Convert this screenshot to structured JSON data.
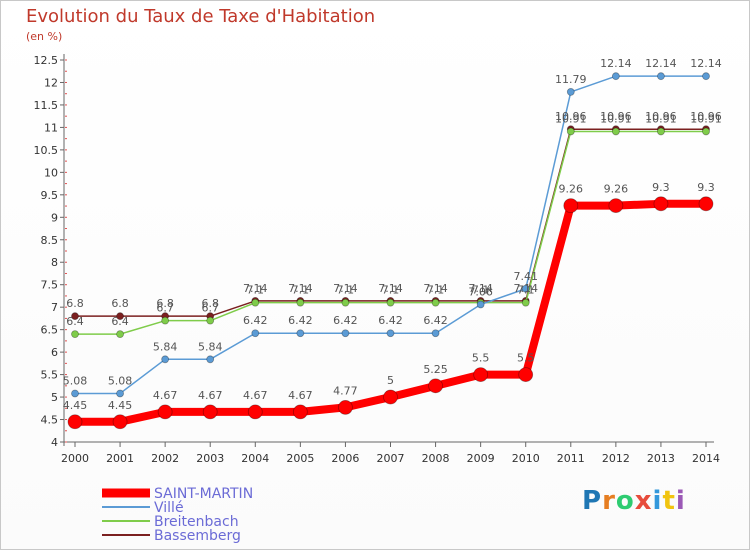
{
  "header": {
    "title": "Evolution du Taux de Taxe d'Habitation",
    "subtitle": "(en %)"
  },
  "logo": {
    "text": "Proxiti",
    "colors": [
      "#1f77b4",
      "#e67e22",
      "#2ecc71",
      "#e74c3c",
      "#3498db",
      "#f1c40f",
      "#9b59b6"
    ]
  },
  "chart_data": {
    "type": "line",
    "title": "Evolution du Taux de Taxe d'Habitation",
    "ylabel": "(en %)",
    "xlabel": "",
    "ylim": [
      4,
      12.5
    ],
    "y_ticks": [
      4,
      4.5,
      5,
      5.5,
      6,
      6.5,
      7,
      7.5,
      8,
      8.5,
      9,
      9.5,
      10,
      10.5,
      11,
      11.5,
      12,
      12.5
    ],
    "y_tick_labels": [
      "4",
      "4.5",
      "5",
      "5.5",
      "6",
      "6.5",
      "7",
      "7.5",
      "8",
      "8.5",
      "9",
      "9.5",
      "10",
      "10.5",
      "11",
      "11.5",
      "12",
      "12.5"
    ],
    "categories": [
      "2000",
      "2001",
      "2002",
      "2003",
      "2004",
      "2005",
      "2006",
      "2007",
      "2008",
      "2009",
      "2010",
      "2011",
      "2012",
      "2013",
      "2014"
    ],
    "legend_position": "bottom-left",
    "grid": false,
    "series": [
      {
        "name": "Bassemberg",
        "color": "#7b2020",
        "width": 1.5,
        "marker": 3.5,
        "values": [
          6.8,
          6.8,
          6.8,
          6.8,
          7.14,
          7.14,
          7.14,
          7.14,
          7.14,
          7.14,
          7.14,
          10.96,
          10.96,
          10.96,
          10.96
        ],
        "labels": [
          "6.8",
          "6.8",
          "6.8",
          "6.8",
          "7.14",
          "7.14",
          "7.14",
          "7.14",
          "7.14",
          "7.14",
          "7.14",
          "10.96",
          "10.96",
          "10.96",
          "10.96"
        ]
      },
      {
        "name": "Breitenbach",
        "color": "#7fcc4a",
        "width": 1.5,
        "marker": 3.5,
        "values": [
          6.4,
          6.4,
          6.7,
          6.7,
          7.1,
          7.1,
          7.1,
          7.1,
          7.1,
          7.1,
          7.1,
          10.91,
          10.91,
          10.91,
          10.91
        ],
        "labels": [
          "6.4",
          "6.4",
          "6.7",
          "6.7",
          "7.1",
          "7.1",
          "7.1",
          "7.1",
          "7.1",
          "7.1",
          "7.1",
          "10.91",
          "10.91",
          "10.91",
          "10.91"
        ]
      },
      {
        "name": "Villé",
        "color": "#5b9bd5",
        "width": 1.5,
        "marker": 3.5,
        "values": [
          5.08,
          5.08,
          5.84,
          5.84,
          6.42,
          6.42,
          6.42,
          6.42,
          6.42,
          7.06,
          7.41,
          11.79,
          12.14,
          12.14,
          12.14
        ],
        "labels": [
          "5.08",
          "5.08",
          "5.84",
          "5.84",
          "6.42",
          "6.42",
          "6.42",
          "6.42",
          "6.42",
          "7.06",
          "7.41",
          "11.79",
          "12.14",
          "12.14",
          "12.14"
        ]
      },
      {
        "name": "SAINT-MARTIN",
        "color": "#ff0000",
        "width": 8,
        "marker": 7,
        "values": [
          4.45,
          4.45,
          4.67,
          4.67,
          4.67,
          4.67,
          4.77,
          5,
          5.25,
          5.5,
          5.5,
          9.26,
          9.26,
          9.3,
          9.3
        ],
        "labels": [
          "4.45",
          "4.45",
          "4.67",
          "4.67",
          "4.67",
          "4.67",
          "4.77",
          "5",
          "5.25",
          "5.5",
          "5.5",
          "9.26",
          "9.26",
          "9.3",
          "9.3"
        ]
      }
    ],
    "legend": [
      "SAINT-MARTIN",
      "Villé",
      "Breitenbach",
      "Bassemberg"
    ]
  }
}
